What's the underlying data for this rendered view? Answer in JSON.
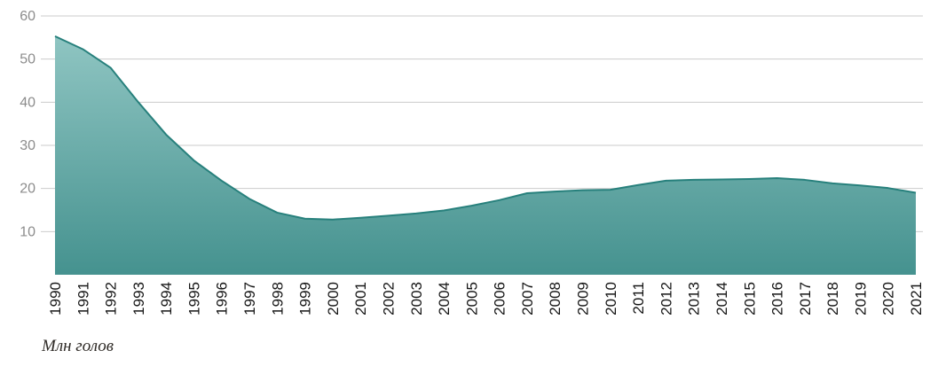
{
  "chart_data": {
    "type": "area",
    "title": "",
    "caption": "Млн голов",
    "xlabel": "",
    "ylabel": "Млн голов",
    "categories": [
      "1990",
      "1991",
      "1992",
      "1993",
      "1994",
      "1995",
      "1996",
      "1997",
      "1998",
      "1999",
      "2000",
      "2001",
      "2002",
      "2003",
      "2004",
      "2005",
      "2006",
      "2007",
      "2008",
      "2009",
      "2010",
      "2011",
      "2012",
      "2013",
      "2014",
      "2015",
      "2016",
      "2017",
      "2018",
      "2019",
      "2020",
      "2021"
    ],
    "values": [
      55.3,
      52.3,
      48.0,
      40.0,
      32.5,
      26.5,
      21.8,
      17.6,
      14.4,
      13.0,
      12.8,
      13.2,
      13.7,
      14.2,
      14.9,
      16.0,
      17.3,
      18.9,
      19.3,
      19.6,
      19.7,
      20.8,
      21.8,
      22.0,
      22.1,
      22.2,
      22.4,
      22.0,
      21.2,
      20.7,
      20.1,
      19.0
    ],
    "ylim": [
      0,
      60
    ],
    "yticks": [
      10,
      20,
      30,
      40,
      50,
      60
    ],
    "grid": true,
    "legend_position": "none",
    "x_tick_rotation": -90,
    "colors": {
      "area_top": "#8FC5C2",
      "area_bottom": "#45928F",
      "line": "#27807C",
      "grid": "#CBCBCB",
      "y_tick": "#8C8C8C",
      "x_tick": "#151515",
      "caption": "#2E2A26",
      "background": "#FFFFFF"
    }
  }
}
